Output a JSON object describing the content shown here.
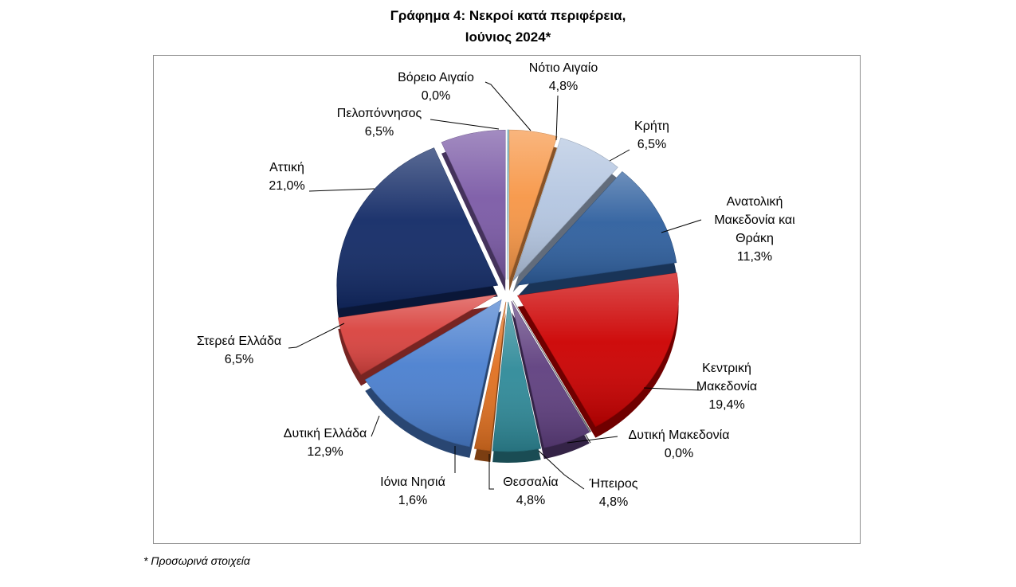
{
  "chart_data": {
    "type": "pie",
    "title": "Γράφημα 4: Νεκροί κατά περιφέρεια,",
    "subtitle": "Ιούνιος 2024*",
    "style": "3d-exploded",
    "slices": [
      {
        "name": "Νότιο Αιγαίο",
        "lines": [
          "Νότιο Αιγαίο"
        ],
        "value_label": "4,8%",
        "value": 4.8,
        "color": "#f79646"
      },
      {
        "name": "Κρήτη",
        "lines": [
          "Κρήτη"
        ],
        "value_label": "6,5%",
        "value": 6.5,
        "color": "#b3c5e0"
      },
      {
        "name": "Ανατολική Μακεδονία και Θράκη",
        "lines": [
          "Ανατολική",
          "Μακεδονία και",
          "Θράκη"
        ],
        "value_label": "11,3%",
        "value": 11.3,
        "color": "#2e5f9e"
      },
      {
        "name": "Κεντρική Μακεδονία",
        "lines": [
          "Κεντρική",
          "Μακεδονία"
        ],
        "value_label": "19,4%",
        "value": 19.4,
        "color": "#cc0000"
      },
      {
        "name": "Δυτική Μακεδονία",
        "lines": [
          "Δυτική Μακεδονία"
        ],
        "value_label": "0,0%",
        "value": 0.0,
        "color": "#7f7f7f"
      },
      {
        "name": "Ήπειρος",
        "lines": [
          "Ήπειρος"
        ],
        "value_label": "4,8%",
        "value": 4.8,
        "color": "#5f3f7f"
      },
      {
        "name": "Θεσσαλία",
        "lines": [
          "Θεσσαλία"
        ],
        "value_label": "4,8%",
        "value": 4.8,
        "color": "#2f8a99"
      },
      {
        "name": "Ιόνια Νησιά",
        "lines": [
          "Ιόνια Νησιά"
        ],
        "value_label": "1,6%",
        "value": 1.6,
        "color": "#e07020"
      },
      {
        "name": "Δυτική Ελλάδα",
        "lines": [
          "Δυτική Ελλάδα"
        ],
        "value_label": "12,9%",
        "value": 12.9,
        "color": "#4a7fcf"
      },
      {
        "name": "Στερεά Ελλάδα",
        "lines": [
          "Στερεά Ελλάδα"
        ],
        "value_label": "6,5%",
        "value": 6.5,
        "color": "#d9423e"
      },
      {
        "name": "Αττική",
        "lines": [
          "Αττική"
        ],
        "value_label": "21,0%",
        "value": 21.0,
        "color": "#122a66"
      },
      {
        "name": "Πελοπόννησος",
        "lines": [
          "Πελοπόννησος"
        ],
        "value_label": "6,5%",
        "value": 6.5,
        "color": "#7b5aa6"
      },
      {
        "name": "Βόρειο Αιγαίο",
        "lines": [
          "Βόρειο Αιγαίο"
        ],
        "value_label": "0,0%",
        "value": 0.0,
        "color": "#4bacc6"
      }
    ]
  },
  "footnote": "* Προσωρινά στοιχεία"
}
